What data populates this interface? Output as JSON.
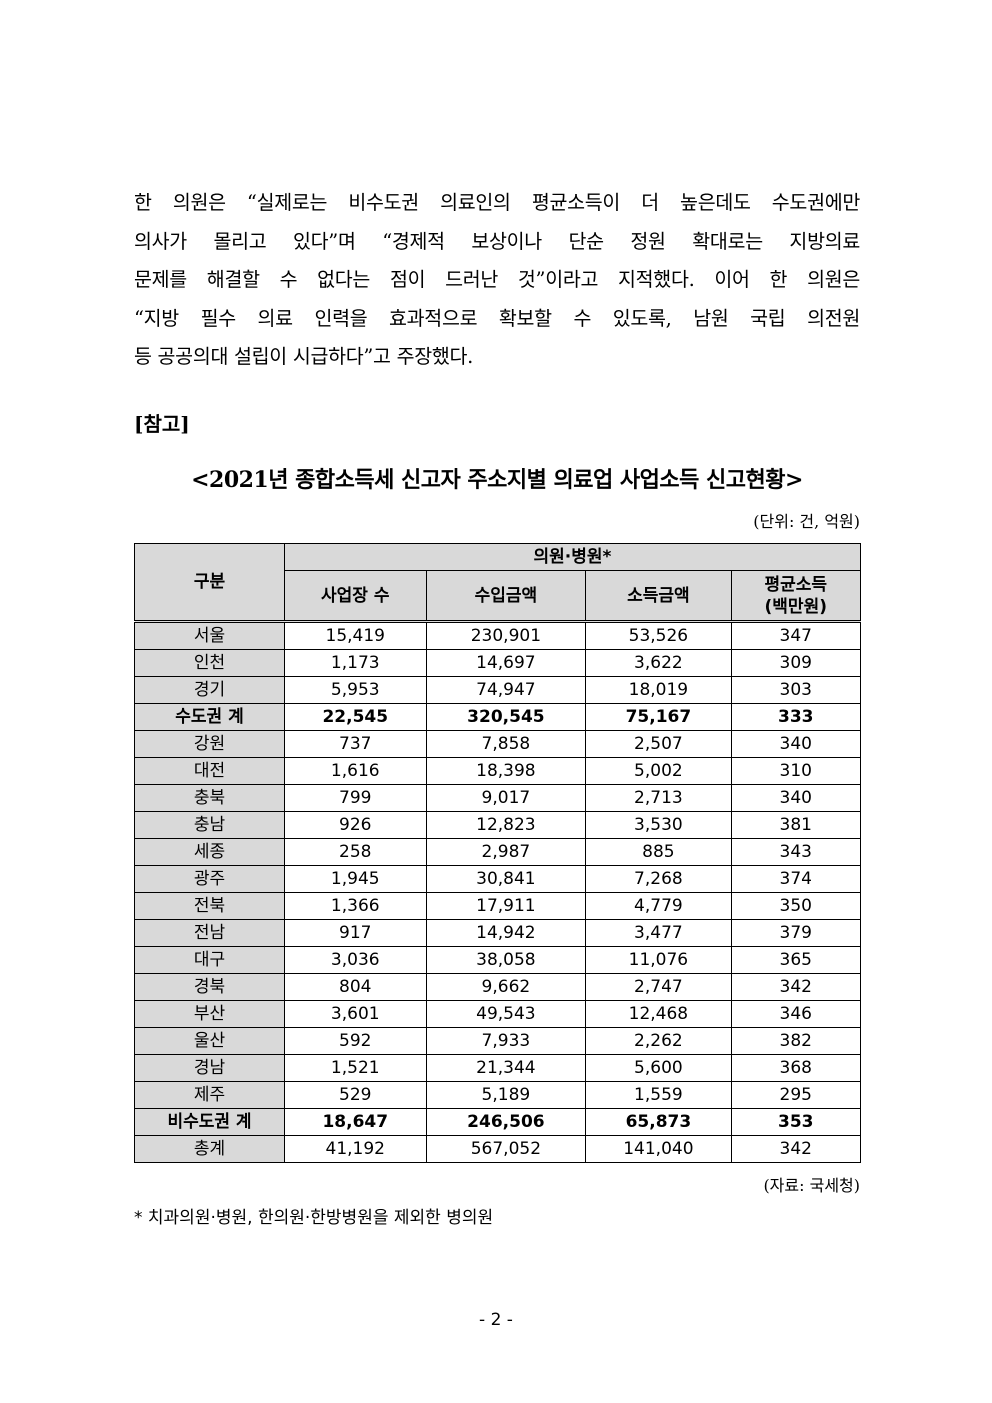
{
  "body_lines": [
    "한 의원은 “실제로는 비수도권 의료인의 평균소득이 더 높은데도 수도권에만",
    "의사가 몰리고 있다”며 “경제적 보상이나 단순 정원 확대로는 지방의료",
    "문제를 해결할 수 없다는 점이 드러난 것”이라고 지적했다. 이어 한 의원은",
    "“지방 필수 의료 인력을 효과적으로 확보할 수 있도록, 남원 국립 의전원",
    "등 공공의대 설립이 시급하다”고 주장했다."
  ],
  "reference_label": "[참고]",
  "table_title": "<2021년 종합소득세 신고자 주소지별 의료업 사업소득 신고현황>",
  "unit": "(단위: 건, 억원)",
  "table": {
    "row_header": "구분",
    "group_header": "의원·병원*",
    "columns": [
      "사업장 수",
      "수입금액",
      "소득금액",
      "평균소득\n(백만원)"
    ],
    "rows": [
      {
        "label": "서울",
        "values": [
          "15,419",
          "230,901",
          "53,526",
          "347"
        ]
      },
      {
        "label": "인천",
        "values": [
          "1,173",
          "14,697",
          "3,622",
          "309"
        ]
      },
      {
        "label": "경기",
        "values": [
          "5,953",
          "74,947",
          "18,019",
          "303"
        ]
      },
      {
        "label": "수도권 계",
        "values": [
          "22,545",
          "320,545",
          "75,167",
          "333"
        ],
        "bold": true
      },
      {
        "label": "강원",
        "values": [
          "737",
          "7,858",
          "2,507",
          "340"
        ]
      },
      {
        "label": "대전",
        "values": [
          "1,616",
          "18,398",
          "5,002",
          "310"
        ]
      },
      {
        "label": "충북",
        "values": [
          "799",
          "9,017",
          "2,713",
          "340"
        ]
      },
      {
        "label": "충남",
        "values": [
          "926",
          "12,823",
          "3,530",
          "381"
        ]
      },
      {
        "label": "세종",
        "values": [
          "258",
          "2,987",
          "885",
          "343"
        ]
      },
      {
        "label": "광주",
        "values": [
          "1,945",
          "30,841",
          "7,268",
          "374"
        ]
      },
      {
        "label": "전북",
        "values": [
          "1,366",
          "17,911",
          "4,779",
          "350"
        ]
      },
      {
        "label": "전남",
        "values": [
          "917",
          "14,942",
          "3,477",
          "379"
        ]
      },
      {
        "label": "대구",
        "values": [
          "3,036",
          "38,058",
          "11,076",
          "365"
        ]
      },
      {
        "label": "경북",
        "values": [
          "804",
          "9,662",
          "2,747",
          "342"
        ]
      },
      {
        "label": "부산",
        "values": [
          "3,601",
          "49,543",
          "12,468",
          "346"
        ]
      },
      {
        "label": "울산",
        "values": [
          "592",
          "7,933",
          "2,262",
          "382"
        ]
      },
      {
        "label": "경남",
        "values": [
          "1,521",
          "21,344",
          "5,600",
          "368"
        ]
      },
      {
        "label": "제주",
        "values": [
          "529",
          "5,189",
          "1,559",
          "295"
        ]
      },
      {
        "label": "비수도권 계",
        "values": [
          "18,647",
          "246,506",
          "65,873",
          "353"
        ],
        "bold": true
      },
      {
        "label": "총계",
        "values": [
          "41,192",
          "567,052",
          "141,040",
          "342"
        ]
      }
    ]
  },
  "source": "(자료: 국세청)",
  "footnote": "* 치과의원·병원, 한의원·한방병원을 제외한 병의원",
  "page_number": "- 2 -"
}
